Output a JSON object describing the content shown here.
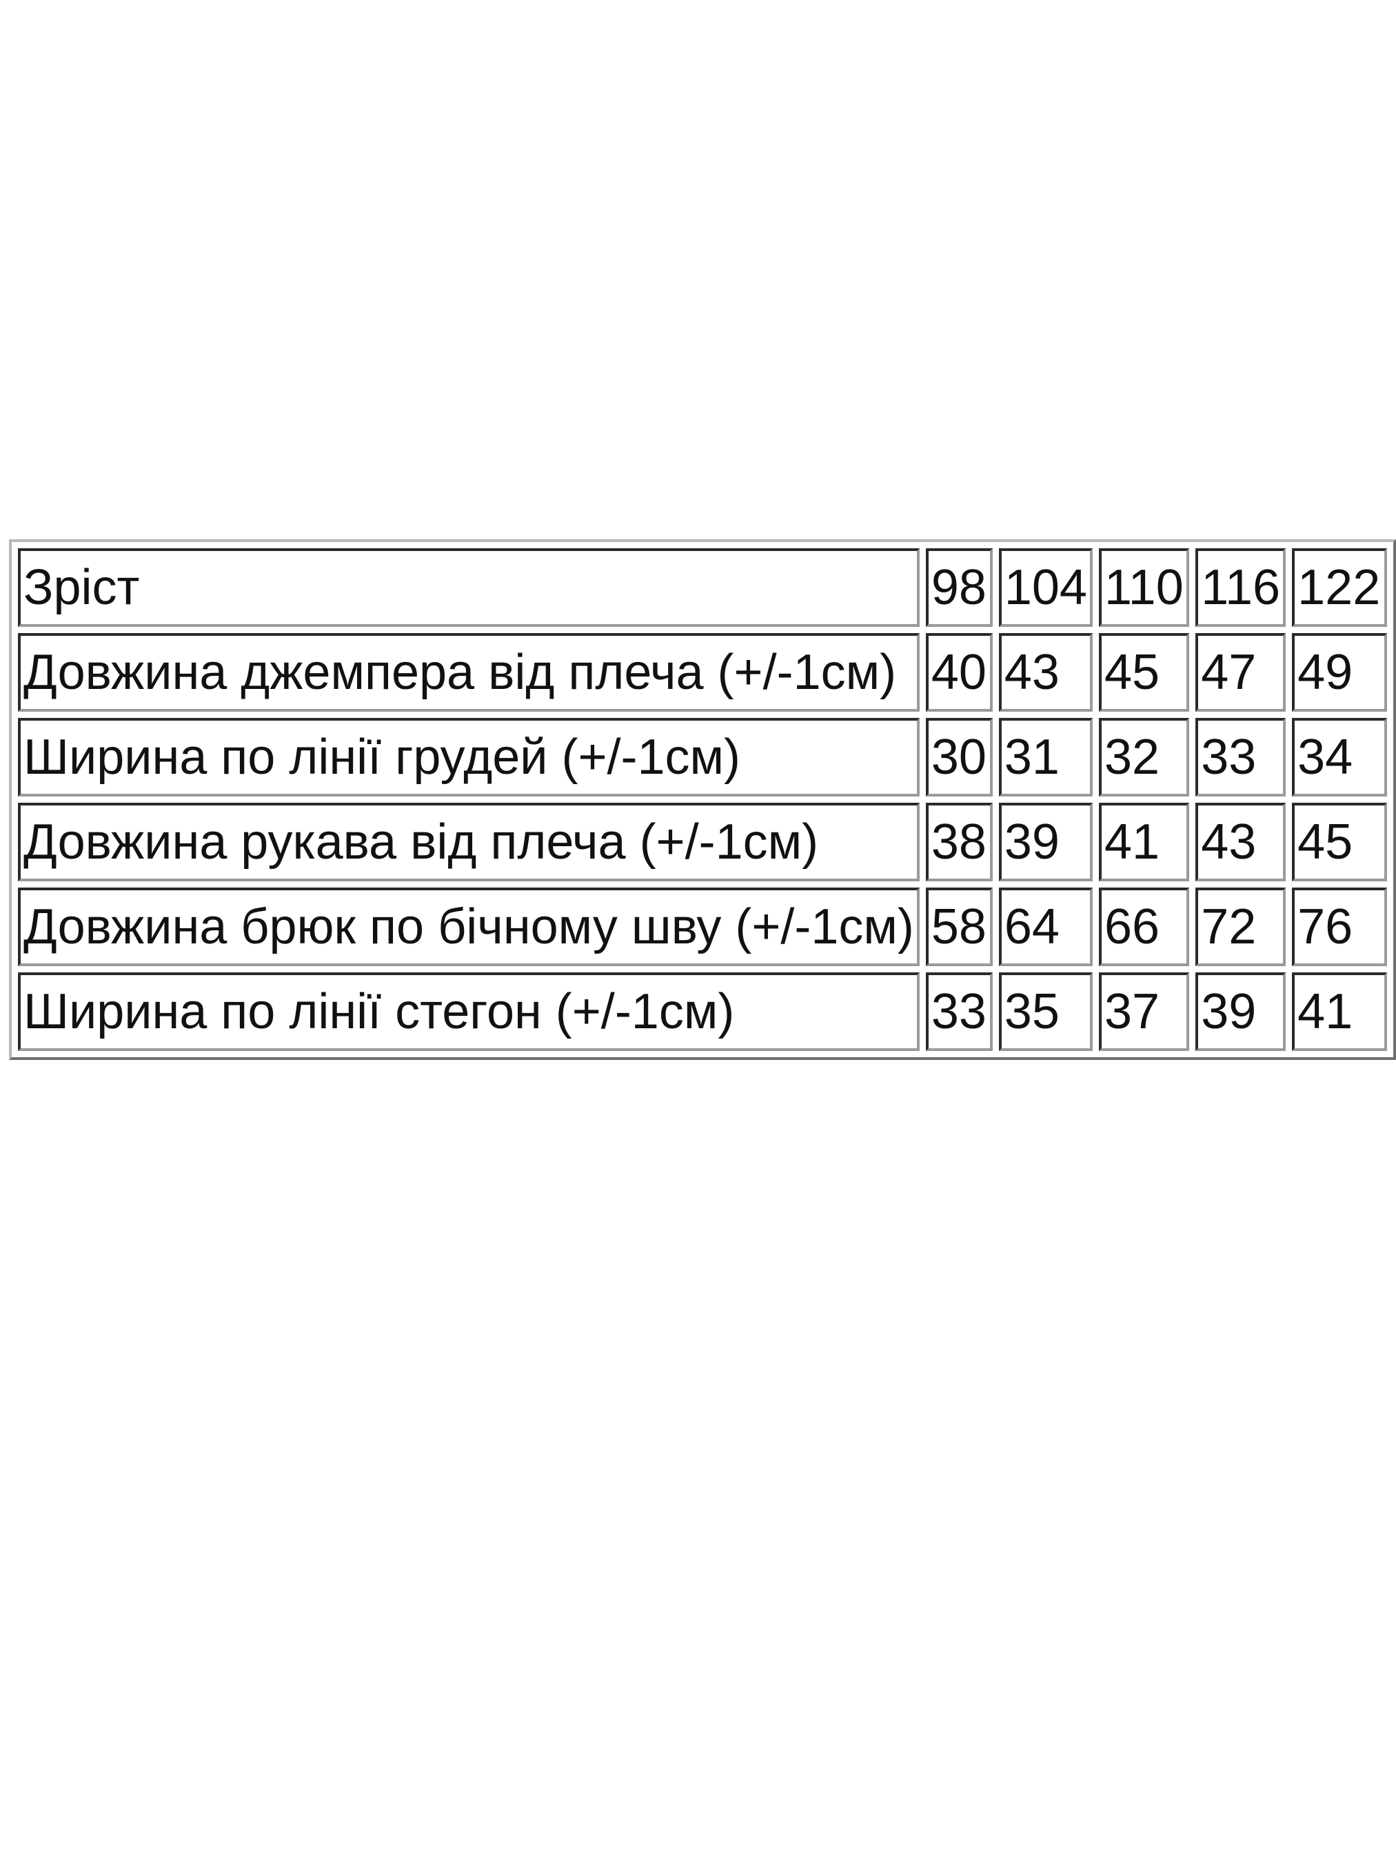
{
  "size_table": {
    "header": {
      "label": "Зріст",
      "sizes": [
        "98",
        "104",
        "110",
        "116",
        "122"
      ]
    },
    "rows": [
      {
        "label": "Довжина джемпера від плеча (+/-1см)",
        "values": [
          "40",
          "43",
          "45",
          "47",
          "49"
        ]
      },
      {
        "label": "Ширина по лінії грудей (+/-1см)",
        "values": [
          "30",
          "31",
          "32",
          "33",
          "34"
        ]
      },
      {
        "label": "Довжина рукава від плеча (+/-1см)",
        "values": [
          "38",
          "39",
          "41",
          "43",
          "45"
        ]
      },
      {
        "label": "Довжина брюк по бічному шву (+/-1см)",
        "values": [
          "58",
          "64",
          "66",
          "72",
          "76"
        ]
      },
      {
        "label": "Ширина по лінії стегон (+/-1см)",
        "values": [
          "33",
          "35",
          "37",
          "39",
          "41"
        ]
      }
    ]
  }
}
